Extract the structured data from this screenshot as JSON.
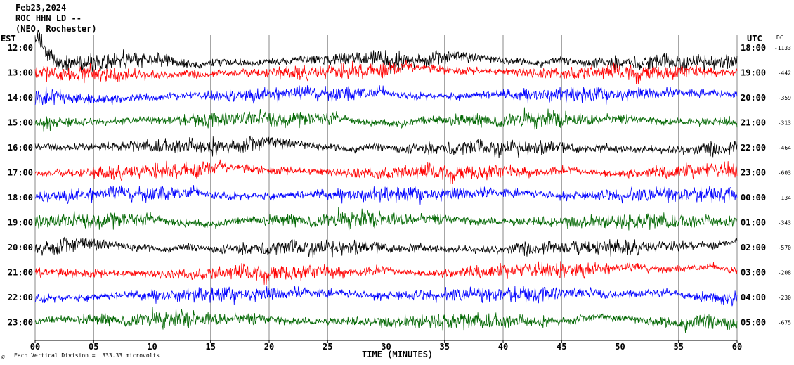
{
  "header": {
    "date": "Feb23,2024",
    "station": "ROC HHN LD --",
    "network": "(NEO, Rochester)"
  },
  "left_tz": "EST",
  "right_tz": "UTC",
  "dc_label": "DC",
  "xlabel": "TIME (MINUTES)",
  "footer": {
    "mark": "∅",
    "scale_text": "Each Vertical Division =  333.33 microvolts"
  },
  "chart_data": {
    "type": "line",
    "title": "",
    "xlabel": "TIME (MINUTES)",
    "xlim": [
      0,
      60
    ],
    "x_ticks": [
      "00",
      "05",
      "10",
      "15",
      "20",
      "25",
      "30",
      "35",
      "40",
      "45",
      "50",
      "55",
      "60"
    ],
    "grid": true,
    "trace_colors": [
      "#000000",
      "#ff0000",
      "#0000ff",
      "#006600"
    ],
    "rows": [
      {
        "est": "12:00",
        "utc": "18:00",
        "dc": "-1133",
        "color": "#000000"
      },
      {
        "est": "13:00",
        "utc": "19:00",
        "dc": "-442",
        "color": "#ff0000"
      },
      {
        "est": "14:00",
        "utc": "20:00",
        "dc": "-359",
        "color": "#0000ff"
      },
      {
        "est": "15:00",
        "utc": "21:00",
        "dc": "-313",
        "color": "#006600"
      },
      {
        "est": "16:00",
        "utc": "22:00",
        "dc": "-464",
        "color": "#000000"
      },
      {
        "est": "17:00",
        "utc": "23:00",
        "dc": "-603",
        "color": "#ff0000"
      },
      {
        "est": "18:00",
        "utc": "00:00",
        "dc": "134",
        "color": "#0000ff"
      },
      {
        "est": "19:00",
        "utc": "01:00",
        "dc": "-343",
        "color": "#006600"
      },
      {
        "est": "20:00",
        "utc": "02:00",
        "dc": "-570",
        "color": "#000000"
      },
      {
        "est": "21:00",
        "utc": "03:00",
        "dc": "-208",
        "color": "#ff0000"
      },
      {
        "est": "22:00",
        "utc": "04:00",
        "dc": "-230",
        "color": "#0000ff"
      },
      {
        "est": "23:00",
        "utc": "05:00",
        "dc": "-675",
        "color": "#006600"
      }
    ]
  }
}
